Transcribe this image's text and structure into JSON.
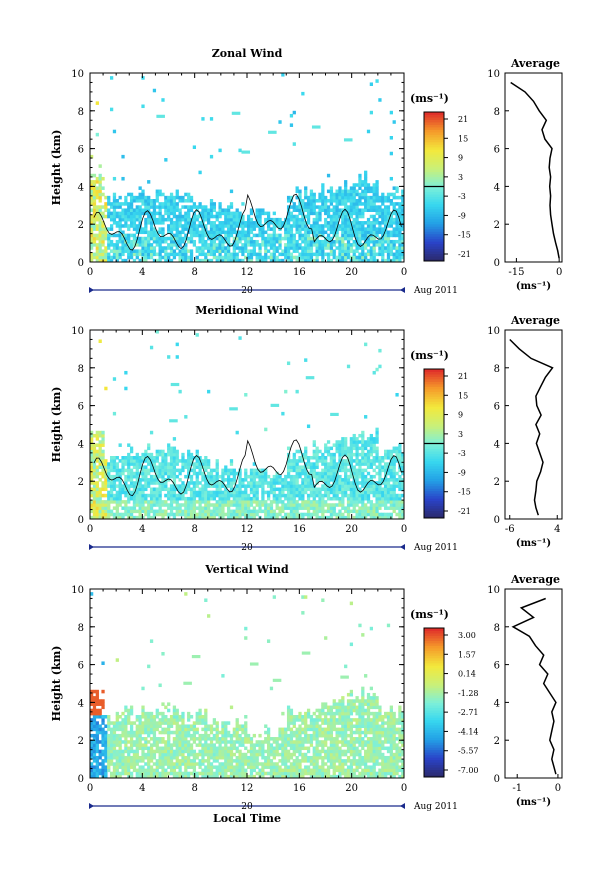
{
  "figure": {
    "xlabel_bottom": "Local Time",
    "date_label": "Aug 2011",
    "day_label": "20",
    "average_title": "Average",
    "unit_label": "(ms⁻¹)",
    "ylabel": "Height (km)"
  },
  "chart_data": [
    {
      "type": "heatmap",
      "title": "Zonal Wind",
      "ylabel": "Height (km)",
      "x_ticks": [
        "0",
        "4",
        "8",
        "12",
        "16",
        "20",
        "0"
      ],
      "x_range": [
        0,
        24
      ],
      "y_ticks": [
        "0",
        "2",
        "4",
        "6",
        "8",
        "10"
      ],
      "y_range": [
        0,
        10
      ],
      "colorbar": {
        "unit": "(ms⁻¹)",
        "ticks": [
          "21",
          "15",
          "9",
          "3",
          "-3",
          "-9",
          "-15",
          "-21"
        ],
        "range": [
          -21,
          21
        ]
      },
      "profile": {
        "title": "Average",
        "x_ticks": [
          "-15",
          "0"
        ],
        "x_range": [
          -19,
          1
        ],
        "xlabel": "(ms⁻¹)",
        "y_ticks": [
          "0",
          "2",
          "4",
          "6",
          "8",
          "10"
        ],
        "heights": [
          0.2,
          0.6,
          1.0,
          1.5,
          2.0,
          2.5,
          3.0,
          3.5,
          4.0,
          4.5,
          5.0,
          5.5,
          6.0,
          6.5,
          7.0,
          7.5,
          8.0,
          8.5,
          9.0,
          9.5
        ],
        "values": [
          0,
          -0.5,
          -1.2,
          -2,
          -2.5,
          -3,
          -3.2,
          -3.0,
          -3.3,
          -3.0,
          -3.5,
          -3.2,
          -2.5,
          -5,
          -6,
          -4.5,
          -7,
          -9,
          -12,
          -17
        ]
      }
    },
    {
      "type": "heatmap",
      "title": "Meridional Wind",
      "ylabel": "Height (km)",
      "x_ticks": [
        "0",
        "4",
        "8",
        "12",
        "16",
        "20",
        "0"
      ],
      "x_range": [
        0,
        24
      ],
      "y_ticks": [
        "0",
        "2",
        "4",
        "6",
        "8",
        "10"
      ],
      "y_range": [
        0,
        10
      ],
      "colorbar": {
        "unit": "(ms⁻¹)",
        "ticks": [
          "21",
          "15",
          "9",
          "3",
          "-3",
          "-9",
          "-15",
          "-21"
        ],
        "range": [
          -21,
          21
        ]
      },
      "profile": {
        "title": "Average",
        "x_ticks": [
          "-6",
          "4"
        ],
        "x_range": [
          -7,
          5
        ],
        "xlabel": "(ms⁻¹)",
        "y_ticks": [
          "0",
          "2",
          "4",
          "6",
          "8",
          "10"
        ],
        "heights": [
          0.2,
          0.6,
          1.0,
          1.5,
          2.0,
          2.5,
          3.0,
          3.5,
          4.0,
          4.5,
          5.0,
          5.5,
          6.0,
          6.5,
          7.0,
          7.5,
          8.0,
          8.5,
          9.0,
          9.5
        ],
        "values": [
          0,
          -0.5,
          -0.8,
          -0.5,
          -0.3,
          0.5,
          1.0,
          0.3,
          -0.4,
          0.3,
          -0.5,
          0.6,
          -0.3,
          -0.5,
          0.5,
          1.5,
          3.0,
          -1.5,
          -4,
          -6
        ]
      }
    },
    {
      "type": "heatmap",
      "title": "Vertical Wind",
      "xlabel": "Local Time",
      "ylabel": "Height (km)",
      "x_ticks": [
        "0",
        "4",
        "8",
        "12",
        "16",
        "20",
        "0"
      ],
      "x_range": [
        0,
        24
      ],
      "y_ticks": [
        "0",
        "2",
        "4",
        "6",
        "8",
        "10"
      ],
      "y_range": [
        0,
        10
      ],
      "colorbar": {
        "unit": "(ms⁻¹)",
        "ticks": [
          "3.00",
          "1.57",
          "0.14",
          "-1.28",
          "-2.71",
          "-4.14",
          "-5.57",
          "-7.00"
        ],
        "range": [
          -7,
          3
        ]
      },
      "profile": {
        "title": "Average",
        "x_ticks": [
          "-1",
          "0"
        ],
        "x_range": [
          -1.3,
          0.1
        ],
        "xlabel": "(ms⁻¹)",
        "y_ticks": [
          "0",
          "2",
          "4",
          "6",
          "8",
          "10"
        ],
        "heights": [
          0.2,
          0.6,
          1.0,
          1.5,
          2.0,
          2.5,
          3.0,
          3.5,
          4.0,
          4.5,
          5.0,
          5.5,
          6.0,
          6.5,
          7.0,
          7.5,
          8.0,
          8.5,
          9.0,
          9.5
        ],
        "values": [
          -0.05,
          -0.1,
          -0.15,
          -0.1,
          -0.2,
          -0.15,
          -0.1,
          -0.15,
          -0.05,
          -0.2,
          -0.35,
          -0.25,
          -0.45,
          -0.35,
          -0.55,
          -0.7,
          -1.1,
          -0.6,
          -0.9,
          -0.3
        ]
      }
    }
  ]
}
